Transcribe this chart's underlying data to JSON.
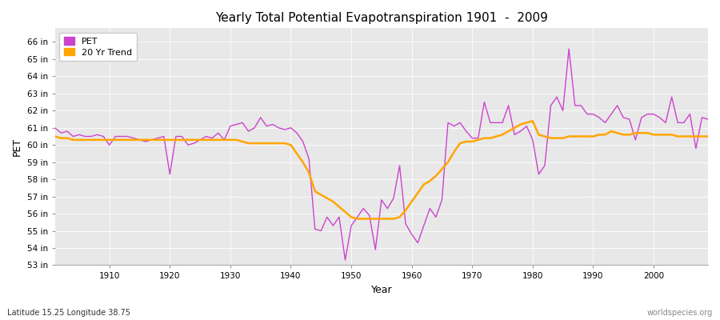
{
  "title": "Yearly Total Potential Evapotranspiration 1901  -  2009",
  "xlabel": "Year",
  "ylabel": "PET",
  "bottom_left_label": "Latitude 15.25 Longitude 38.75",
  "bottom_right_label": "worldspecies.org",
  "pet_color": "#CC44CC",
  "trend_color": "#FFA500",
  "figure_bg_color": "#FFFFFF",
  "plot_bg_color": "#E8E8E8",
  "grid_color": "#FFFFFF",
  "ylim": [
    53.0,
    66.8
  ],
  "xlim": [
    1901,
    2009
  ],
  "ytick_labels": [
    "53 in",
    "54 in",
    "55 in",
    "56 in",
    "57 in",
    "58 in",
    "59 in",
    "60 in",
    "61 in",
    "62 in",
    "63 in",
    "64 in",
    "65 in",
    "66 in"
  ],
  "ytick_values": [
    53,
    54,
    55,
    56,
    57,
    58,
    59,
    60,
    61,
    62,
    63,
    64,
    65,
    66
  ],
  "xtick_values": [
    1910,
    1920,
    1930,
    1940,
    1950,
    1960,
    1970,
    1980,
    1990,
    2000
  ],
  "years": [
    1901,
    1902,
    1903,
    1904,
    1905,
    1906,
    1907,
    1908,
    1909,
    1910,
    1911,
    1912,
    1913,
    1914,
    1915,
    1916,
    1917,
    1918,
    1919,
    1920,
    1921,
    1922,
    1923,
    1924,
    1925,
    1926,
    1927,
    1928,
    1929,
    1930,
    1931,
    1932,
    1933,
    1934,
    1935,
    1936,
    1937,
    1938,
    1939,
    1940,
    1941,
    1942,
    1943,
    1944,
    1945,
    1946,
    1947,
    1948,
    1949,
    1950,
    1951,
    1952,
    1953,
    1954,
    1955,
    1956,
    1957,
    1958,
    1959,
    1960,
    1961,
    1962,
    1963,
    1964,
    1965,
    1966,
    1967,
    1968,
    1969,
    1970,
    1971,
    1972,
    1973,
    1974,
    1975,
    1976,
    1977,
    1978,
    1979,
    1980,
    1981,
    1982,
    1983,
    1984,
    1985,
    1986,
    1987,
    1988,
    1989,
    1990,
    1991,
    1992,
    1993,
    1994,
    1995,
    1996,
    1997,
    1998,
    1999,
    2000,
    2001,
    2002,
    2003,
    2004,
    2005,
    2006,
    2007,
    2008,
    2009
  ],
  "pet_values": [
    61.0,
    60.7,
    60.8,
    60.5,
    60.6,
    60.5,
    60.5,
    60.6,
    60.5,
    60.0,
    60.5,
    60.5,
    60.5,
    60.4,
    60.3,
    60.2,
    60.3,
    60.4,
    60.5,
    58.3,
    60.5,
    60.5,
    60.0,
    60.1,
    60.3,
    60.5,
    60.4,
    60.7,
    60.3,
    61.1,
    61.2,
    61.3,
    60.8,
    61.0,
    61.6,
    61.1,
    61.2,
    61.0,
    60.9,
    61.0,
    60.7,
    60.2,
    59.2,
    55.1,
    55.0,
    55.8,
    55.3,
    55.8,
    53.3,
    55.3,
    55.8,
    56.3,
    55.9,
    53.9,
    56.8,
    56.3,
    56.9,
    58.8,
    55.4,
    54.8,
    54.3,
    55.3,
    56.3,
    55.8,
    56.8,
    61.3,
    61.1,
    61.3,
    60.8,
    60.4,
    60.4,
    62.5,
    61.3,
    61.3,
    61.3,
    62.3,
    60.6,
    60.8,
    61.1,
    60.3,
    58.3,
    58.8,
    62.3,
    62.8,
    62.0,
    65.6,
    62.3,
    62.3,
    61.8,
    61.8,
    61.6,
    61.3,
    61.8,
    62.3,
    61.6,
    61.5,
    60.3,
    61.6,
    61.8,
    61.8,
    61.6,
    61.3,
    62.8,
    61.3,
    61.3,
    61.8,
    59.8,
    61.6,
    61.5
  ],
  "trend_values": [
    60.5,
    60.4,
    60.4,
    60.3,
    60.3,
    60.3,
    60.3,
    60.3,
    60.3,
    60.3,
    60.3,
    60.3,
    60.3,
    60.3,
    60.3,
    60.3,
    60.3,
    60.3,
    60.3,
    60.3,
    60.3,
    60.3,
    60.3,
    60.3,
    60.3,
    60.3,
    60.3,
    60.3,
    60.3,
    60.3,
    60.3,
    60.2,
    60.1,
    60.1,
    60.1,
    60.1,
    60.1,
    60.1,
    60.1,
    60.0,
    59.5,
    59.0,
    58.4,
    57.3,
    57.1,
    56.9,
    56.7,
    56.4,
    56.1,
    55.8,
    55.7,
    55.7,
    55.7,
    55.7,
    55.7,
    55.7,
    55.7,
    55.8,
    56.2,
    56.7,
    57.2,
    57.7,
    57.9,
    58.2,
    58.6,
    59.0,
    59.6,
    60.1,
    60.2,
    60.2,
    60.3,
    60.4,
    60.4,
    60.5,
    60.6,
    60.8,
    61.0,
    61.2,
    61.3,
    61.4,
    60.6,
    60.5,
    60.4,
    60.4,
    60.4,
    60.5,
    60.5,
    60.5,
    60.5,
    60.5,
    60.6,
    60.6,
    60.8,
    60.7,
    60.6,
    60.6,
    60.7,
    60.7,
    60.7,
    60.6,
    60.6,
    60.6,
    60.6,
    60.5,
    60.5,
    60.5,
    60.5,
    60.5,
    60.5
  ]
}
